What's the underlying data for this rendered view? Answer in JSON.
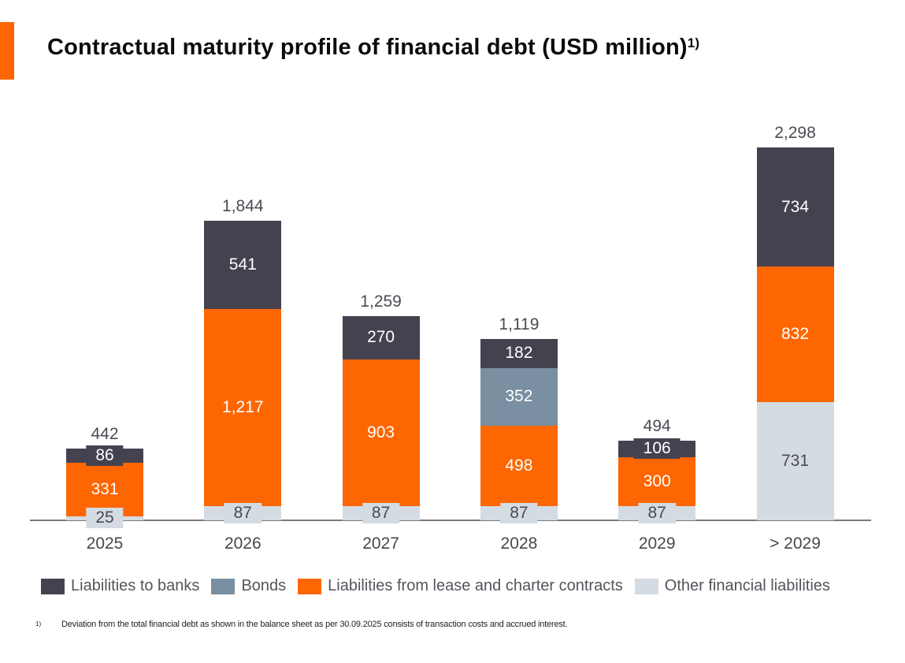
{
  "header": {
    "title": "Contractual maturity profile of financial debt (USD million)",
    "footnote_ref": "1)"
  },
  "accent_color": "#fe6602",
  "chart_data": {
    "type": "bar",
    "stacked": true,
    "title": "Contractual maturity profile of financial debt (USD million)",
    "categories": [
      "2025",
      "2026",
      "2027",
      "2028",
      "2029",
      "> 2029"
    ],
    "series": [
      {
        "name": "Liabilities to banks",
        "color": "#454250",
        "label_color": "#ffffff",
        "values": [
          86,
          541,
          270,
          182,
          106,
          734
        ]
      },
      {
        "name": "Bonds",
        "color": "#7a8fa1",
        "label_color": "#ffffff",
        "values": [
          0,
          0,
          0,
          352,
          0,
          0
        ]
      },
      {
        "name": "Liabilities from lease and charter contracts",
        "color": "#fe6602",
        "label_color": "#ffffff",
        "values": [
          331,
          1217,
          903,
          498,
          300,
          832
        ]
      },
      {
        "name": "Other financial liabilities",
        "color": "#d4dbe2",
        "label_color": "#4a4a54",
        "values": [
          25,
          87,
          87,
          87,
          87,
          731
        ]
      }
    ],
    "totals": [
      "442",
      "1,844",
      "1,259",
      "1,119",
      "494",
      "2,298"
    ],
    "ylim": [
      0,
      2298
    ],
    "grid": false,
    "legend_position": "bottom",
    "axis_color": "#7a7a7a"
  },
  "footnote": {
    "marker": "1)",
    "text": "Deviation from the total financial debt as shown in the balance sheet as per 30.09.2025 consists of transaction costs and accrued interest."
  }
}
